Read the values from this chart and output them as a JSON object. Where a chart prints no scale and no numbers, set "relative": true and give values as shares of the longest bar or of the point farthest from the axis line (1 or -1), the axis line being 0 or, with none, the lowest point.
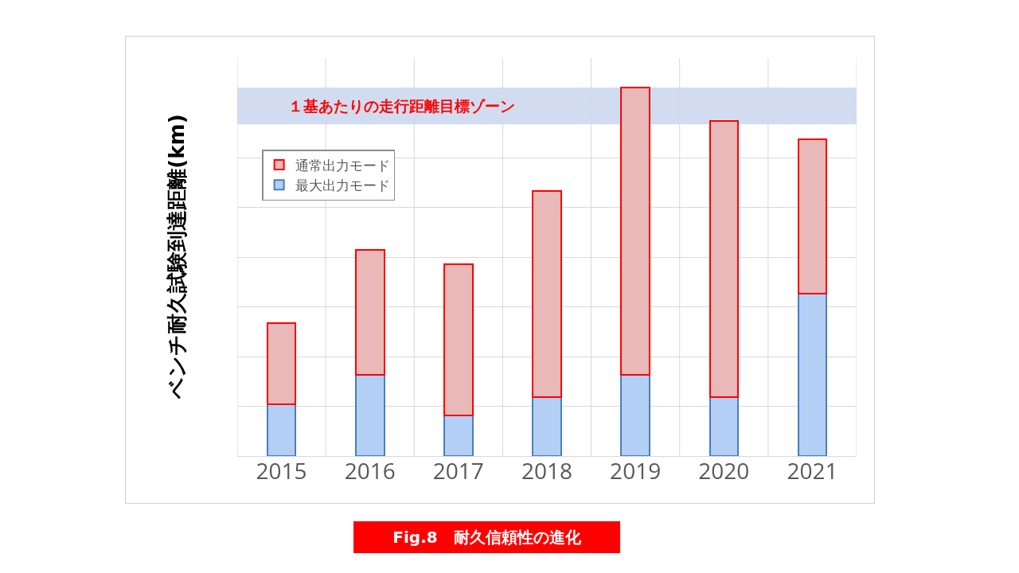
{
  "chart_data": {
    "type": "bar",
    "title": "Fig.8　耐久信頼性の進化",
    "ylabel": "ベンチ耐久試験到達距離(km)",
    "categories": [
      "2015",
      "2016",
      "2017",
      "2018",
      "2019",
      "2020",
      "2021"
    ],
    "stacked": true,
    "relative": true,
    "series": [
      {
        "name": "最大出力モード",
        "color": "#b4cff5",
        "values": [
          0.14,
          0.22,
          0.11,
          0.16,
          0.22,
          0.16,
          0.44
        ]
      },
      {
        "name": "通常出力モード",
        "color": "#e9b8b8",
        "values": [
          0.22,
          0.34,
          0.41,
          0.56,
          0.78,
          0.75,
          0.42
        ]
      }
    ],
    "bands": [
      {
        "axis": "y",
        "from": 0.9,
        "to": 1.0,
        "label": "１基あたりの走行距離目標ゾーン",
        "color": "#c5d3ed"
      }
    ],
    "grid": true,
    "legend": "top left"
  }
}
